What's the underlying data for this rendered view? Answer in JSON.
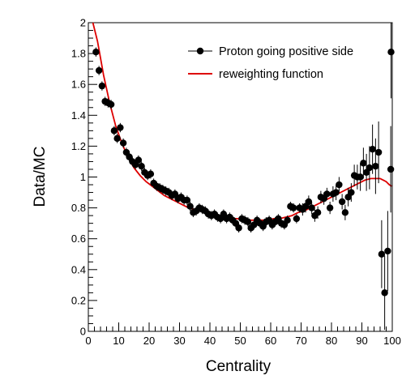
{
  "chart_data": {
    "type": "scatter",
    "xlabel": "Centrality",
    "ylabel": "Data/MC",
    "xlim": [
      0,
      100
    ],
    "ylim": [
      0,
      2
    ],
    "xticks": [
      "0",
      "10",
      "20",
      "30",
      "40",
      "50",
      "60",
      "70",
      "80",
      "90",
      "100"
    ],
    "yticks": [
      "0",
      "0.2",
      "0.4",
      "0.6",
      "0.8",
      "1",
      "1.2",
      "1.4",
      "1.6",
      "1.8",
      "2"
    ],
    "legend_position": "top-right",
    "grid": false,
    "series": [
      {
        "name": "Proton going positive side",
        "style": "markers-with-error-bars",
        "color": "#000000",
        "points": [
          [
            2.5,
            1.81,
            0.03
          ],
          [
            3.5,
            1.69,
            0.03
          ],
          [
            4.5,
            1.59,
            0.03
          ],
          [
            5.5,
            1.49,
            0.03
          ],
          [
            6.5,
            1.48,
            0.03
          ],
          [
            7.5,
            1.47,
            0.03
          ],
          [
            8.5,
            1.3,
            0.03
          ],
          [
            9.5,
            1.25,
            0.03
          ],
          [
            10.5,
            1.32,
            0.03
          ],
          [
            11.5,
            1.22,
            0.03
          ],
          [
            12.5,
            1.16,
            0.03
          ],
          [
            13.5,
            1.13,
            0.03
          ],
          [
            14.5,
            1.1,
            0.03
          ],
          [
            15.5,
            1.08,
            0.03
          ],
          [
            16.5,
            1.11,
            0.03
          ],
          [
            17.5,
            1.07,
            0.03
          ],
          [
            18.5,
            1.03,
            0.03
          ],
          [
            19.5,
            1.01,
            0.03
          ],
          [
            20.5,
            1.02,
            0.03
          ],
          [
            21.5,
            0.96,
            0.03
          ],
          [
            22.5,
            0.94,
            0.03
          ],
          [
            23.5,
            0.93,
            0.03
          ],
          [
            24.5,
            0.92,
            0.03
          ],
          [
            25.5,
            0.91,
            0.03
          ],
          [
            26.5,
            0.9,
            0.03
          ],
          [
            27.5,
            0.88,
            0.03
          ],
          [
            28.5,
            0.89,
            0.03
          ],
          [
            29.5,
            0.86,
            0.03
          ],
          [
            30.5,
            0.87,
            0.03
          ],
          [
            31.5,
            0.85,
            0.03
          ],
          [
            32.5,
            0.85,
            0.03
          ],
          [
            33.5,
            0.81,
            0.03
          ],
          [
            34.5,
            0.77,
            0.03
          ],
          [
            35.5,
            0.78,
            0.03
          ],
          [
            36.5,
            0.8,
            0.03
          ],
          [
            37.5,
            0.79,
            0.03
          ],
          [
            38.5,
            0.78,
            0.03
          ],
          [
            39.5,
            0.76,
            0.03
          ],
          [
            40.5,
            0.75,
            0.03
          ],
          [
            41.5,
            0.76,
            0.03
          ],
          [
            42.5,
            0.74,
            0.03
          ],
          [
            43.5,
            0.73,
            0.03
          ],
          [
            44.5,
            0.76,
            0.03
          ],
          [
            45.5,
            0.73,
            0.03
          ],
          [
            46.5,
            0.74,
            0.03
          ],
          [
            47.5,
            0.72,
            0.03
          ],
          [
            48.5,
            0.7,
            0.03
          ],
          [
            49.5,
            0.67,
            0.03
          ],
          [
            50.5,
            0.73,
            0.03
          ],
          [
            51.5,
            0.72,
            0.03
          ],
          [
            52.5,
            0.71,
            0.03
          ],
          [
            53.5,
            0.67,
            0.03
          ],
          [
            54.5,
            0.69,
            0.03
          ],
          [
            55.5,
            0.72,
            0.03
          ],
          [
            56.5,
            0.7,
            0.03
          ],
          [
            57.5,
            0.68,
            0.03
          ],
          [
            58.5,
            0.71,
            0.03
          ],
          [
            59.5,
            0.72,
            0.03
          ],
          [
            60.5,
            0.69,
            0.03
          ],
          [
            61.5,
            0.71,
            0.03
          ],
          [
            62.5,
            0.73,
            0.03
          ],
          [
            63.5,
            0.7,
            0.03
          ],
          [
            64.5,
            0.69,
            0.03
          ],
          [
            65.5,
            0.72,
            0.03
          ],
          [
            66.5,
            0.81,
            0.03
          ],
          [
            67.5,
            0.8,
            0.03
          ],
          [
            68.5,
            0.73,
            0.03
          ],
          [
            69.5,
            0.8,
            0.03
          ],
          [
            70.5,
            0.79,
            0.04
          ],
          [
            71.5,
            0.81,
            0.04
          ],
          [
            72.5,
            0.84,
            0.04
          ],
          [
            73.5,
            0.8,
            0.04
          ],
          [
            74.5,
            0.75,
            0.04
          ],
          [
            75.5,
            0.77,
            0.04
          ],
          [
            76.5,
            0.87,
            0.04
          ],
          [
            77.5,
            0.86,
            0.04
          ],
          [
            78.5,
            0.89,
            0.04
          ],
          [
            79.5,
            0.8,
            0.04
          ],
          [
            80.5,
            0.89,
            0.05
          ],
          [
            81.5,
            0.9,
            0.05
          ],
          [
            82.5,
            0.95,
            0.05
          ],
          [
            83.5,
            0.84,
            0.05
          ],
          [
            84.5,
            0.77,
            0.05
          ],
          [
            85.5,
            0.87,
            0.06
          ],
          [
            86.5,
            0.9,
            0.06
          ],
          [
            87.5,
            1.01,
            0.07
          ],
          [
            88.5,
            1.0,
            0.08
          ],
          [
            89.5,
            1.0,
            0.09
          ],
          [
            90.5,
            1.09,
            0.1
          ],
          [
            91.5,
            1.03,
            0.12
          ],
          [
            92.5,
            1.06,
            0.14
          ],
          [
            93.5,
            1.18,
            0.16
          ],
          [
            94.5,
            1.07,
            0.18
          ],
          [
            95.5,
            1.16,
            0.2
          ],
          [
            96.5,
            0.5,
            0.22
          ],
          [
            97.5,
            0.25,
            0.24
          ],
          [
            98.5,
            0.52,
            0.26
          ],
          [
            99.5,
            1.05,
            0.28
          ],
          [
            100.5,
            1.81,
            0.3
          ]
        ]
      },
      {
        "name": "reweighting function",
        "style": "line",
        "color": "#dd0000",
        "points": [
          [
            1.5,
            2.0
          ],
          [
            3,
            1.88
          ],
          [
            5,
            1.66
          ],
          [
            7,
            1.48
          ],
          [
            9,
            1.33
          ],
          [
            11,
            1.22
          ],
          [
            13,
            1.13
          ],
          [
            15,
            1.06
          ],
          [
            17,
            1.01
          ],
          [
            19,
            0.97
          ],
          [
            21,
            0.94
          ],
          [
            23,
            0.91
          ],
          [
            25,
            0.88
          ],
          [
            27,
            0.86
          ],
          [
            29,
            0.84
          ],
          [
            31,
            0.82
          ],
          [
            33,
            0.8
          ],
          [
            35,
            0.79
          ],
          [
            37,
            0.78
          ],
          [
            39,
            0.77
          ],
          [
            41,
            0.76
          ],
          [
            43,
            0.75
          ],
          [
            45,
            0.74
          ],
          [
            47,
            0.73
          ],
          [
            49,
            0.73
          ],
          [
            51,
            0.72
          ],
          [
            53,
            0.72
          ],
          [
            55,
            0.72
          ],
          [
            57,
            0.72
          ],
          [
            59,
            0.72
          ],
          [
            61,
            0.73
          ],
          [
            63,
            0.73
          ],
          [
            65,
            0.74
          ],
          [
            67,
            0.75
          ],
          [
            69,
            0.77
          ],
          [
            71,
            0.78
          ],
          [
            73,
            0.8
          ],
          [
            75,
            0.82
          ],
          [
            77,
            0.84
          ],
          [
            79,
            0.86
          ],
          [
            81,
            0.88
          ],
          [
            83,
            0.9
          ],
          [
            85,
            0.92
          ],
          [
            87,
            0.94
          ],
          [
            89,
            0.96
          ],
          [
            91,
            0.98
          ],
          [
            93,
            0.99
          ],
          [
            95,
            0.99
          ],
          [
            96,
            0.99
          ],
          [
            97,
            0.98
          ],
          [
            98,
            0.97
          ],
          [
            99,
            0.95
          ],
          [
            99.8,
            0.94
          ]
        ]
      }
    ]
  }
}
